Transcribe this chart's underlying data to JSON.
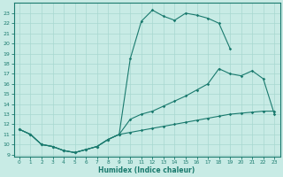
{
  "xlabel": "Humidex (Indice chaleur)",
  "xlim": [
    -0.5,
    23.5
  ],
  "ylim": [
    8.8,
    24.0
  ],
  "xticks": [
    0,
    1,
    2,
    3,
    4,
    5,
    6,
    7,
    8,
    9,
    10,
    11,
    12,
    13,
    14,
    15,
    16,
    17,
    18,
    19,
    20,
    21,
    22,
    23
  ],
  "yticks": [
    9,
    10,
    11,
    12,
    13,
    14,
    15,
    16,
    17,
    18,
    19,
    20,
    21,
    22,
    23
  ],
  "bg_color": "#c8ebe5",
  "line_color": "#1a7a6e",
  "grid_color": "#a8d8d0",
  "curve1_x": [
    0,
    1,
    2,
    3,
    4,
    5,
    6,
    7,
    8,
    9,
    10,
    11,
    12,
    13,
    14,
    15,
    16,
    17,
    18,
    19
  ],
  "curve1_y": [
    11.5,
    11.0,
    10.0,
    9.8,
    9.4,
    9.2,
    9.5,
    9.8,
    10.5,
    11.0,
    18.5,
    22.2,
    23.3,
    22.7,
    22.3,
    23.0,
    22.8,
    22.5,
    22.0,
    19.5
  ],
  "curve2_x": [
    0,
    1,
    2,
    3,
    4,
    5,
    6,
    7,
    8,
    9,
    10,
    11,
    12,
    13,
    14,
    15,
    16,
    17,
    18,
    19,
    20,
    21,
    22,
    23
  ],
  "curve2_y": [
    11.5,
    11.0,
    10.0,
    9.8,
    9.4,
    9.2,
    9.5,
    9.8,
    10.5,
    11.0,
    12.5,
    13.0,
    13.3,
    13.8,
    14.3,
    14.8,
    15.4,
    16.0,
    17.5,
    17.0,
    16.8,
    17.3,
    16.5,
    13.0
  ],
  "curve3_x": [
    0,
    1,
    2,
    3,
    4,
    5,
    6,
    7,
    8,
    9,
    10,
    11,
    12,
    13,
    14,
    15,
    16,
    17,
    18,
    19,
    20,
    21,
    22,
    23
  ],
  "curve3_y": [
    11.5,
    11.0,
    10.0,
    9.8,
    9.4,
    9.2,
    9.5,
    9.8,
    10.5,
    11.0,
    11.2,
    11.4,
    11.6,
    11.8,
    12.0,
    12.2,
    12.4,
    12.6,
    12.8,
    13.0,
    13.1,
    13.2,
    13.3,
    13.3
  ]
}
